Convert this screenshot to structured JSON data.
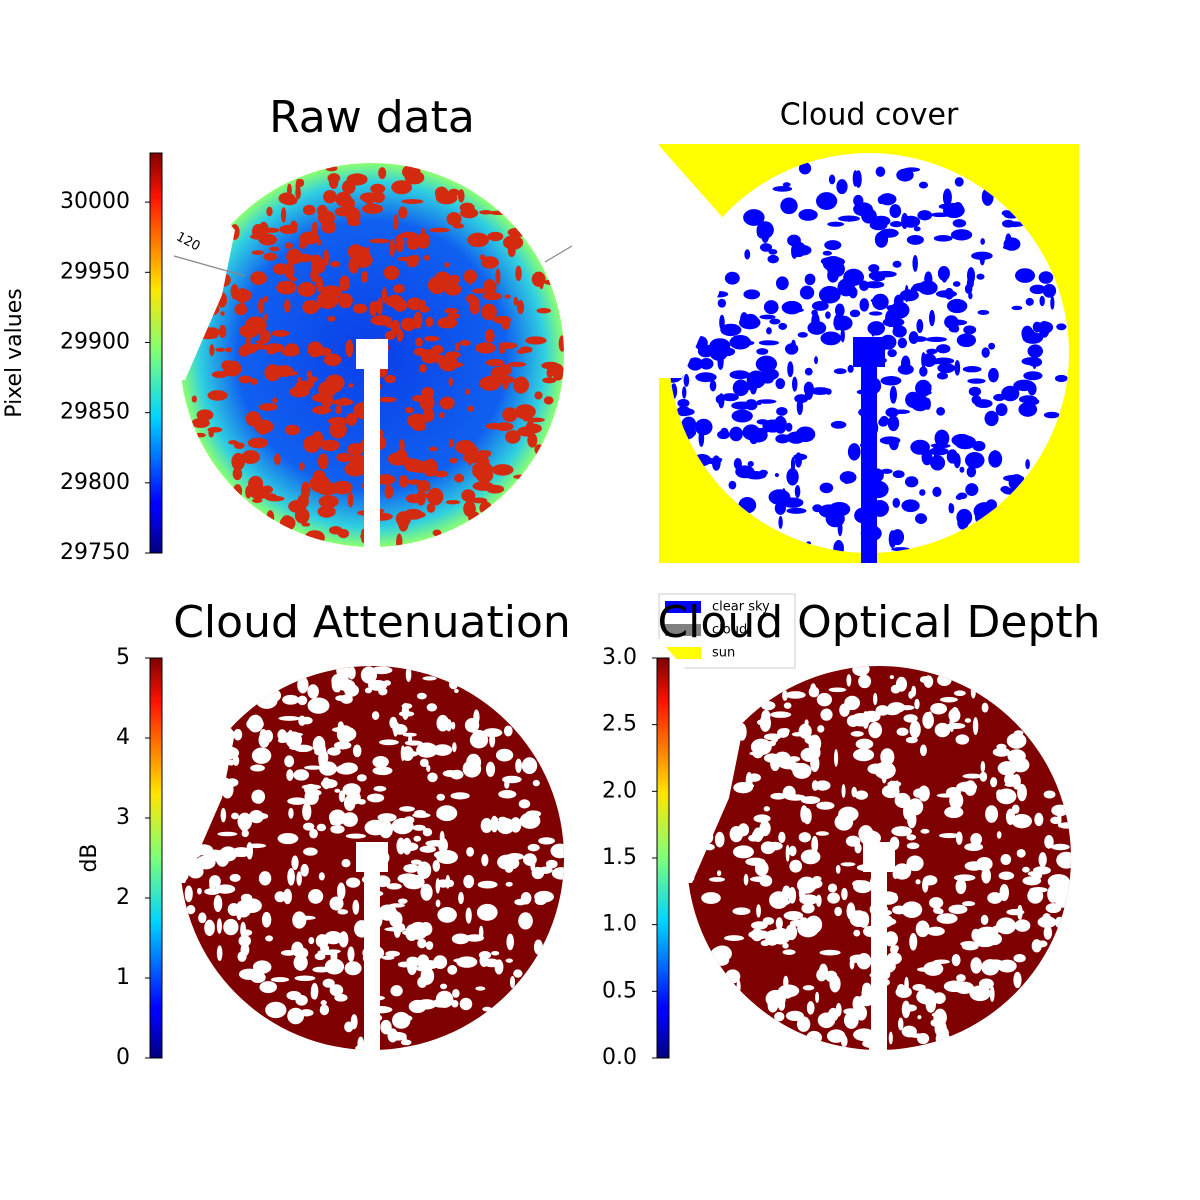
{
  "chart_data": [
    {
      "type": "image",
      "title": "Raw data",
      "ylabel": "Pixel values",
      "colormap": "jet",
      "ylim": [
        29750,
        30035
      ],
      "yticks": [
        29750,
        29800,
        29850,
        29900,
        29950,
        30000
      ],
      "annotation": "120"
    },
    {
      "type": "image",
      "title": "Cloud cover",
      "series": [
        {
          "name": "clear sky",
          "color": "#0000ff"
        },
        {
          "name": "cloud",
          "color": "#808080"
        },
        {
          "name": "sun",
          "color": "#ffff00"
        }
      ]
    },
    {
      "type": "image",
      "title": "Cloud Attenuation",
      "ylabel": "dB",
      "colormap": "jet",
      "ylim": [
        0,
        5
      ],
      "yticks": [
        0,
        1,
        2,
        3,
        4,
        5
      ]
    },
    {
      "type": "image",
      "title": "Cloud Optical Depth",
      "colormap": "jet",
      "ylim": [
        0,
        3
      ],
      "yticks": [
        {
          "value": 0,
          "label": "0.0"
        },
        0.5,
        {
          "value": 1,
          "label": "1.0"
        },
        1.5,
        {
          "value": 2,
          "label": "2.0"
        },
        2.5,
        {
          "value": 3,
          "label": "3.0"
        }
      ]
    }
  ]
}
